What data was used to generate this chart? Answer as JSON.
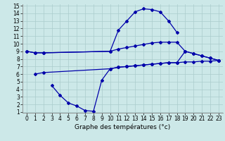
{
  "xlabel": "Graphe des températures (°c)",
  "bg_color": "#cce8e8",
  "grid_color": "#aacccc",
  "line_color": "#0000aa",
  "xlim": [
    -0.5,
    23.5
  ],
  "ylim": [
    1,
    15
  ],
  "xticks": [
    0,
    1,
    2,
    3,
    4,
    5,
    6,
    7,
    8,
    9,
    10,
    11,
    12,
    13,
    14,
    15,
    16,
    17,
    18,
    19,
    20,
    21,
    22,
    23
  ],
  "yticks": [
    1,
    2,
    3,
    4,
    5,
    6,
    7,
    8,
    9,
    10,
    11,
    12,
    13,
    14,
    15
  ],
  "curve1_x": [
    0,
    1,
    2,
    10,
    11,
    12,
    13,
    14,
    15,
    16,
    17,
    18
  ],
  "curve1_y": [
    9.0,
    8.8,
    8.8,
    9.0,
    11.8,
    13.0,
    14.2,
    14.6,
    14.5,
    14.2,
    13.0,
    11.5
  ],
  "curve2_x": [
    0,
    1,
    2,
    10,
    11,
    12,
    13,
    14,
    15,
    16,
    17,
    18,
    19,
    20,
    21,
    22,
    23
  ],
  "curve2_y": [
    9.0,
    8.8,
    8.8,
    9.0,
    9.3,
    9.5,
    9.7,
    9.9,
    10.1,
    10.2,
    10.2,
    10.2,
    9.0,
    8.7,
    8.4,
    8.1,
    7.8
  ],
  "curve3_x": [
    1,
    2,
    10,
    11,
    12,
    13,
    14,
    15,
    16,
    17,
    18,
    19,
    20,
    21,
    22,
    23
  ],
  "curve3_y": [
    6.0,
    6.2,
    6.7,
    6.9,
    7.0,
    7.1,
    7.2,
    7.3,
    7.4,
    7.5,
    7.5,
    7.6,
    7.6,
    7.7,
    7.7,
    7.8
  ],
  "curve4_x": [
    3,
    4,
    5,
    6,
    7,
    8,
    9,
    10,
    11,
    12,
    13,
    14,
    15,
    16,
    17,
    18,
    19,
    20,
    21,
    22,
    23
  ],
  "curve4_y": [
    4.5,
    3.2,
    2.2,
    1.8,
    1.2,
    1.1,
    5.2,
    6.7,
    6.9,
    7.0,
    7.1,
    7.2,
    7.3,
    7.4,
    7.5,
    7.5,
    9.0,
    8.7,
    8.4,
    8.1,
    7.8
  ],
  "tick_fontsize": 5.5,
  "label_fontsize": 6.5,
  "lw": 0.9,
  "ms": 2.0
}
